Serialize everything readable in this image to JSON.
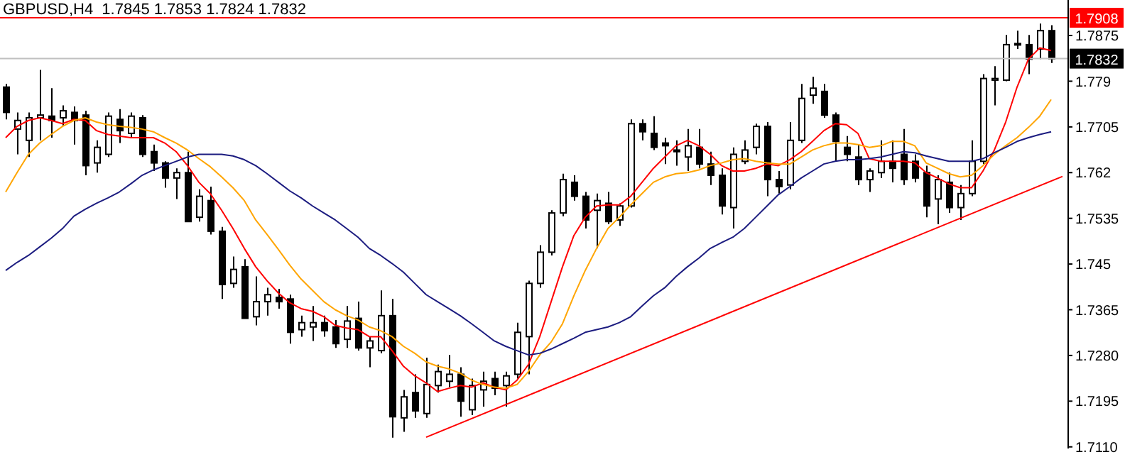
{
  "chart_data": {
    "type": "candlestick",
    "title": "GBPUSD,H4  1.7845 1.7853 1.7824 1.7832",
    "categories": [
      null,
      null,
      null,
      null,
      null,
      null,
      null,
      null,
      null,
      null,
      null,
      null,
      null,
      null,
      null,
      null,
      null,
      null,
      null,
      null,
      null,
      null,
      null,
      null,
      null,
      null,
      null,
      null,
      null,
      null,
      null,
      null,
      null,
      null,
      null,
      null,
      null,
      null,
      null,
      null,
      null,
      null,
      null,
      null,
      null,
      null,
      null,
      null,
      null,
      null,
      null,
      null,
      null,
      null,
      null,
      null,
      null,
      null,
      null,
      null,
      null,
      null,
      null,
      null,
      null,
      null,
      null,
      null,
      null,
      null,
      null,
      null,
      null,
      null,
      null,
      null,
      null,
      null,
      null,
      null,
      null,
      null,
      null,
      null,
      null,
      null,
      null,
      null,
      null,
      null,
      null,
      null,
      null,
      null
    ],
    "ohlc": [
      [
        1.7779,
        1.7785,
        1.7719,
        1.7732
      ],
      [
        1.7701,
        1.7732,
        1.7654,
        1.7717
      ],
      [
        1.768,
        1.7732,
        1.7649,
        1.7722
      ],
      [
        1.7722,
        1.7811,
        1.768,
        1.7727
      ],
      [
        1.7725,
        1.7777,
        1.7685,
        1.7717
      ],
      [
        1.7722,
        1.7745,
        1.7706,
        1.7735
      ],
      [
        1.7732,
        1.7743,
        1.7672,
        1.7717
      ],
      [
        1.7727,
        1.7735,
        1.7615,
        1.7633
      ],
      [
        1.7638,
        1.768,
        1.762,
        1.7667
      ],
      [
        1.7654,
        1.7732,
        1.7649,
        1.7725
      ],
      [
        1.7719,
        1.7738,
        1.7675,
        1.7698
      ],
      [
        1.7693,
        1.7732,
        1.7685,
        1.7725
      ],
      [
        1.7722,
        1.7727,
        1.7649,
        1.7654
      ],
      [
        1.7659,
        1.7672,
        1.7623,
        1.7638
      ],
      [
        1.7638,
        1.7641,
        1.7592,
        1.761
      ],
      [
        1.761,
        1.7628,
        1.7571,
        1.762
      ],
      [
        1.762,
        1.7659,
        1.7529,
        1.7529
      ],
      [
        1.7537,
        1.7589,
        1.7529,
        1.7576
      ],
      [
        1.7568,
        1.7594,
        1.7505,
        1.7511
      ],
      [
        1.7511,
        1.7519,
        1.7385,
        1.7412
      ],
      [
        1.7414,
        1.7464,
        1.7406,
        1.744
      ],
      [
        1.7445,
        1.7459,
        1.7349,
        1.7349
      ],
      [
        1.7352,
        1.7427,
        1.7336,
        1.738
      ],
      [
        1.738,
        1.7406,
        1.7354,
        1.7393
      ],
      [
        1.7388,
        1.7404,
        1.7367,
        1.738
      ],
      [
        1.7385,
        1.7393,
        1.7302,
        1.7323
      ],
      [
        1.7328,
        1.7354,
        1.7315,
        1.7341
      ],
      [
        1.7333,
        1.7372,
        1.7307,
        1.7341
      ],
      [
        1.7341,
        1.7354,
        1.7315,
        1.7326
      ],
      [
        1.7333,
        1.7346,
        1.7294,
        1.7302
      ],
      [
        1.731,
        1.7372,
        1.7294,
        1.7344
      ],
      [
        1.7349,
        1.738,
        1.7289,
        1.7294
      ],
      [
        1.7294,
        1.7315,
        1.7258,
        1.7307
      ],
      [
        1.7289,
        1.7401,
        1.7284,
        1.7354
      ],
      [
        1.7354,
        1.7385,
        1.7127,
        1.7166
      ],
      [
        1.7164,
        1.7216,
        1.7138,
        1.7203
      ],
      [
        1.7211,
        1.7245,
        1.7164,
        1.7177
      ],
      [
        1.7172,
        1.7276,
        1.7164,
        1.7226
      ],
      [
        1.7224,
        1.7263,
        1.7211,
        1.725
      ],
      [
        1.7232,
        1.7281,
        1.7221,
        1.7245
      ],
      [
        1.7245,
        1.7258,
        1.7166,
        1.7195
      ],
      [
        1.7179,
        1.7237,
        1.7169,
        1.7224
      ],
      [
        1.7216,
        1.725,
        1.7185,
        1.7232
      ],
      [
        1.7237,
        1.725,
        1.7206,
        1.7219
      ],
      [
        1.7224,
        1.725,
        1.7185,
        1.7242
      ],
      [
        1.7245,
        1.7341,
        1.7237,
        1.7323
      ],
      [
        1.7315,
        1.7419,
        1.7245,
        1.7414
      ],
      [
        1.7414,
        1.7485,
        1.7406,
        1.7472
      ],
      [
        1.7472,
        1.755,
        1.7466,
        1.7545
      ],
      [
        1.7545,
        1.7618,
        1.7539,
        1.7607
      ],
      [
        1.7602,
        1.7615,
        1.7568,
        1.7576
      ],
      [
        1.7576,
        1.7584,
        1.7516,
        1.7532
      ],
      [
        1.755,
        1.7581,
        1.7479,
        1.7568
      ],
      [
        1.7563,
        1.7584,
        1.7524,
        1.7529
      ],
      [
        1.7532,
        1.7563,
        1.7521,
        1.7558
      ],
      [
        1.7558,
        1.7719,
        1.7555,
        1.7711
      ],
      [
        1.7711,
        1.7719,
        1.768,
        1.7696
      ],
      [
        1.7693,
        1.7725,
        1.7662,
        1.7667
      ],
      [
        1.7675,
        1.7685,
        1.7636,
        1.767
      ],
      [
        1.7662,
        1.768,
        1.7633,
        1.7659
      ],
      [
        1.7649,
        1.7701,
        1.7623,
        1.767
      ],
      [
        1.7667,
        1.7701,
        1.7628,
        1.7636
      ],
      [
        1.7636,
        1.7659,
        1.7597,
        1.7615
      ],
      [
        1.7615,
        1.7628,
        1.7542,
        1.7558
      ],
      [
        1.7555,
        1.7667,
        1.7516,
        1.7654
      ],
      [
        1.7641,
        1.768,
        1.7636,
        1.7662
      ],
      [
        1.7667,
        1.7711,
        1.7654,
        1.7706
      ],
      [
        1.7706,
        1.7714,
        1.7576,
        1.7607
      ],
      [
        1.7607,
        1.7623,
        1.7581,
        1.7594
      ],
      [
        1.7597,
        1.7714,
        1.7589,
        1.768
      ],
      [
        1.768,
        1.7785,
        1.7675,
        1.7758
      ],
      [
        1.7764,
        1.7798,
        1.7748,
        1.7777
      ],
      [
        1.7771,
        1.7785,
        1.7722,
        1.7727
      ],
      [
        1.7727,
        1.7732,
        1.7641,
        1.7678
      ],
      [
        1.7667,
        1.7688,
        1.7641,
        1.7654
      ],
      [
        1.7649,
        1.7672,
        1.7597,
        1.7607
      ],
      [
        1.7607,
        1.7628,
        1.7584,
        1.7623
      ],
      [
        1.762,
        1.768,
        1.761,
        1.7641
      ],
      [
        1.7641,
        1.768,
        1.7602,
        1.7628
      ],
      [
        1.7654,
        1.7701,
        1.7597,
        1.7607
      ],
      [
        1.7641,
        1.7654,
        1.7602,
        1.761
      ],
      [
        1.762,
        1.7633,
        1.7537,
        1.7558
      ],
      [
        1.7571,
        1.7615,
        1.7524,
        1.7607
      ],
      [
        1.7602,
        1.762,
        1.7545,
        1.7555
      ],
      [
        1.7555,
        1.7597,
        1.7532,
        1.7581
      ],
      [
        1.7581,
        1.768,
        1.7576,
        1.7641
      ],
      [
        1.7641,
        1.7803,
        1.7636,
        1.7795
      ],
      [
        1.7792,
        1.7818,
        1.7745,
        1.7795
      ],
      [
        1.7792,
        1.7876,
        1.779,
        1.7858
      ],
      [
        1.7858,
        1.7884,
        1.785,
        1.786
      ],
      [
        1.7858,
        1.7876,
        1.7803,
        1.7831
      ],
      [
        1.785,
        1.7897,
        1.7831,
        1.7884
      ],
      [
        1.7884,
        1.7894,
        1.7824,
        1.7832
      ],
      null
    ],
    "series": [
      {
        "type": "line",
        "color": "#ff0000",
        "values": [
          1.7685,
          1.7706,
          1.7717,
          1.7722,
          1.7717,
          1.7711,
          1.7719,
          1.7717,
          1.7698,
          1.7691,
          1.7688,
          1.7685,
          1.7685,
          1.7685,
          1.7675,
          1.7659,
          1.7633,
          1.7602,
          1.7581,
          1.755,
          1.7516,
          1.7479,
          1.7445,
          1.7419,
          1.7396,
          1.7378,
          1.7367,
          1.7362,
          1.7352,
          1.7336,
          1.7331,
          1.7328,
          1.7315,
          1.7315,
          1.7289,
          1.726,
          1.7242,
          1.7229,
          1.7213,
          1.7219,
          1.7224,
          1.7221,
          1.7229,
          1.7221,
          1.7216,
          1.7234,
          1.7263,
          1.7315,
          1.738,
          1.7445,
          1.7503,
          1.7537,
          1.7558,
          1.756,
          1.756,
          1.7576,
          1.7602,
          1.7628,
          1.7649,
          1.767,
          1.768,
          1.767,
          1.7654,
          1.7633,
          1.7623,
          1.7623,
          1.7628,
          1.7636,
          1.7633,
          1.7644,
          1.7659,
          1.7678,
          1.7698,
          1.7711,
          1.7709,
          1.7693,
          1.7646,
          1.7641,
          1.7641,
          1.7641,
          1.7638,
          1.762,
          1.761,
          1.7599,
          1.7592,
          1.7592,
          1.7623,
          1.7662,
          1.7714,
          1.7779,
          1.7831,
          1.7852,
          1.7847,
          null
        ]
      },
      {
        "type": "line",
        "color": "#ffa500",
        "values": [
          1.7584,
          1.762,
          1.7654,
          1.7675,
          1.7691,
          1.7706,
          1.7717,
          1.7722,
          1.7714,
          1.7709,
          1.7706,
          1.7704,
          1.7701,
          1.7696,
          1.7685,
          1.7675,
          1.7662,
          1.7646,
          1.7631,
          1.7612,
          1.7592,
          1.7568,
          1.7532,
          1.7505,
          1.7477,
          1.7448,
          1.7422,
          1.7401,
          1.738,
          1.7365,
          1.7354,
          1.7346,
          1.7333,
          1.7326,
          1.7315,
          1.7297,
          1.7284,
          1.7268,
          1.726,
          1.7255,
          1.7247,
          1.7234,
          1.7226,
          1.7221,
          1.7219,
          1.7226,
          1.725,
          1.7281,
          1.7305,
          1.7339,
          1.7391,
          1.7438,
          1.7479,
          1.7516,
          1.7537,
          1.756,
          1.7581,
          1.7602,
          1.7612,
          1.7618,
          1.762,
          1.7625,
          1.7633,
          1.7638,
          1.7644,
          1.7646,
          1.7641,
          1.7638,
          1.7636,
          1.7636,
          1.7649,
          1.7662,
          1.767,
          1.7675,
          1.7675,
          1.7672,
          1.7667,
          1.767,
          1.7678,
          1.7678,
          1.767,
          1.7638,
          1.7628,
          1.7618,
          1.7612,
          1.7615,
          1.7633,
          1.7654,
          1.767,
          1.7685,
          1.7704,
          1.7725,
          1.7756,
          null
        ]
      },
      {
        "type": "line",
        "color": "#1c1c80",
        "values": [
          1.7438,
          1.7453,
          1.7466,
          1.7482,
          1.7498,
          1.7516,
          1.7539,
          1.7552,
          1.7563,
          1.7573,
          1.7584,
          1.7599,
          1.7615,
          1.7625,
          1.7633,
          1.7641,
          1.7649,
          1.7654,
          1.7654,
          1.7654,
          1.7651,
          1.7644,
          1.7633,
          1.7618,
          1.7602,
          1.7586,
          1.7573,
          1.7558,
          1.7545,
          1.7532,
          1.7516,
          1.75,
          1.7479,
          1.7466,
          1.7451,
          1.7435,
          1.7414,
          1.7393,
          1.738,
          1.7367,
          1.7354,
          1.7339,
          1.7323,
          1.7307,
          1.7297,
          1.7289,
          1.7281,
          1.7284,
          1.7292,
          1.7302,
          1.7312,
          1.7323,
          1.7328,
          1.7333,
          1.7341,
          1.7352,
          1.7372,
          1.7391,
          1.7406,
          1.7427,
          1.7445,
          1.7461,
          1.7479,
          1.749,
          1.75,
          1.7516,
          1.7537,
          1.7558,
          1.7579,
          1.7594,
          1.761,
          1.7623,
          1.7636,
          1.7641,
          1.7644,
          1.7644,
          1.7646,
          1.7649,
          1.7654,
          1.7659,
          1.7657,
          1.7651,
          1.7646,
          1.7641,
          1.7641,
          1.7641,
          1.7646,
          1.7657,
          1.7667,
          1.7678,
          1.7685,
          1.7691,
          1.7696,
          null
        ]
      },
      {
        "type": "line",
        "color": "#ff0000",
        "values": [
          null,
          null,
          null,
          null,
          null,
          null,
          null,
          null,
          null,
          null,
          null,
          null,
          null,
          null,
          null,
          null,
          null,
          null,
          null,
          null,
          null,
          null,
          null,
          null,
          null,
          null,
          null,
          null,
          null,
          null,
          null,
          null,
          null,
          null,
          null,
          null,
          null,
          1.7128,
          null,
          null,
          null,
          null,
          null,
          null,
          null,
          null,
          null,
          null,
          null,
          null,
          null,
          null,
          null,
          null,
          null,
          null,
          null,
          null,
          null,
          null,
          null,
          null,
          null,
          null,
          null,
          null,
          null,
          null,
          null,
          null,
          null,
          null,
          null,
          null,
          null,
          null,
          null,
          null,
          null,
          null,
          null,
          null,
          null,
          null,
          null,
          null,
          null,
          null,
          null,
          null,
          null,
          null,
          null,
          1.7613
        ]
      }
    ],
    "ylim": [
      1.7107,
      1.7941
    ],
    "yticks": [
      {
        "value": 1.711,
        "label": "1.7110"
      },
      1.7195,
      {
        "value": 1.728,
        "label": "1.7280"
      },
      1.7365,
      1.745,
      1.7535,
      1.762,
      1.7705,
      1.779,
      1.7875
    ],
    "ref_lines": [
      {
        "axis": "y",
        "value": 1.7908,
        "label": "1.7908",
        "color": "#ff0000"
      },
      {
        "axis": "y",
        "value": 1.7832,
        "label": "1.7832",
        "color": "#c0c0c0"
      }
    ],
    "tick_labels": "y"
  }
}
